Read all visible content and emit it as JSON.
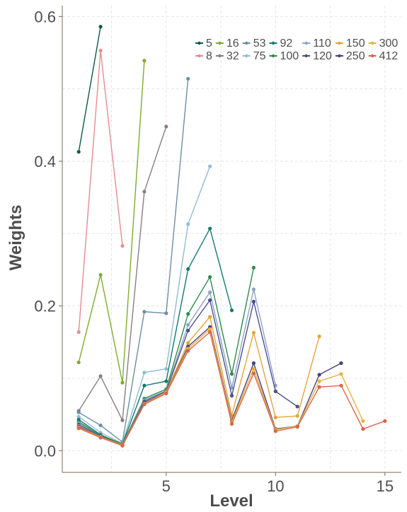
{
  "chart_data": {
    "type": "line",
    "title": "",
    "xlabel": "Level",
    "ylabel": "Weights",
    "xlim": [
      0.25,
      15.75
    ],
    "ylim": [
      -0.03,
      0.615
    ],
    "xticks": [
      5,
      10,
      15
    ],
    "yticks": [
      0.0,
      0.2,
      0.4,
      0.6
    ],
    "ytick_labels": [
      "0.0",
      "0.2",
      "0.4",
      "0.6"
    ],
    "grid": true,
    "legend_position": "top-right",
    "series": [
      {
        "name": "5",
        "color": "#0b5b48",
        "x": [
          1,
          2
        ],
        "y": [
          0.413,
          0.586
        ]
      },
      {
        "name": "8",
        "color": "#e88a93",
        "x": [
          1,
          2,
          3
        ],
        "y": [
          0.164,
          0.553,
          0.283
        ]
      },
      {
        "name": "16",
        "color": "#7cae2e",
        "x": [
          1,
          2,
          3,
          4
        ],
        "y": [
          0.122,
          0.243,
          0.094,
          0.539
        ]
      },
      {
        "name": "32",
        "color": "#8c7d81",
        "x": [
          1,
          2,
          3,
          4,
          5
        ],
        "y": [
          0.055,
          0.103,
          0.042,
          0.358,
          0.448
        ]
      },
      {
        "name": "53",
        "color": "#6b8fa3",
        "x": [
          1,
          2,
          3,
          4,
          5,
          6
        ],
        "y": [
          0.053,
          0.035,
          0.012,
          0.192,
          0.19,
          0.514
        ]
      },
      {
        "name": "75",
        "color": "#8fbcd4",
        "x": [
          1,
          2,
          3,
          4,
          5,
          6,
          7
        ],
        "y": [
          0.047,
          0.025,
          0.01,
          0.108,
          0.113,
          0.313,
          0.393
        ]
      },
      {
        "name": "92",
        "color": "#137a72",
        "x": [
          1,
          2,
          3,
          4,
          5,
          6,
          7,
          8
        ],
        "y": [
          0.043,
          0.022,
          0.009,
          0.09,
          0.096,
          0.251,
          0.307,
          0.194
        ]
      },
      {
        "name": "100",
        "color": "#2f8a4e",
        "x": [
          1,
          2,
          3,
          4,
          5,
          6,
          7,
          8,
          9
        ],
        "y": [
          0.04,
          0.021,
          0.009,
          0.072,
          0.085,
          0.189,
          0.24,
          0.106,
          0.253
        ]
      },
      {
        "name": "110",
        "color": "#8fa3c4",
        "x": [
          1,
          2,
          3,
          4,
          5,
          6,
          7,
          8,
          9,
          10
        ],
        "y": [
          0.038,
          0.02,
          0.008,
          0.07,
          0.083,
          0.174,
          0.219,
          0.087,
          0.223,
          0.09
        ]
      },
      {
        "name": "120",
        "color": "#4a4f8c",
        "x": [
          1,
          2,
          3,
          4,
          5,
          6,
          7,
          8,
          9,
          10,
          11
        ],
        "y": [
          0.036,
          0.02,
          0.008,
          0.068,
          0.082,
          0.166,
          0.208,
          0.076,
          0.206,
          0.082,
          0.061
        ]
      },
      {
        "name": "150",
        "color": "#e6a33a",
        "x": [
          1,
          2,
          3,
          4,
          5,
          6,
          7,
          8,
          9,
          10,
          11,
          12
        ],
        "y": [
          0.034,
          0.019,
          0.008,
          0.066,
          0.081,
          0.149,
          0.185,
          0.049,
          0.163,
          0.046,
          0.048,
          0.158
        ]
      },
      {
        "name": "250",
        "color": "#47417e",
        "x": [
          1,
          2,
          3,
          4,
          5,
          6,
          7,
          8,
          9,
          10,
          11,
          12,
          13
        ],
        "y": [
          0.033,
          0.019,
          0.007,
          0.066,
          0.08,
          0.144,
          0.171,
          0.042,
          0.121,
          0.03,
          0.034,
          0.105,
          0.121
        ]
      },
      {
        "name": "300",
        "color": "#e8b23f",
        "x": [
          1,
          2,
          3,
          4,
          5,
          6,
          7,
          8,
          9,
          10,
          11,
          12,
          13,
          14
        ],
        "y": [
          0.032,
          0.019,
          0.007,
          0.065,
          0.08,
          0.141,
          0.168,
          0.04,
          0.113,
          0.029,
          0.034,
          0.096,
          0.106,
          0.041
        ]
      },
      {
        "name": "412",
        "color": "#d9654a",
        "x": [
          1,
          2,
          3,
          4,
          5,
          6,
          7,
          8,
          9,
          10,
          11,
          12,
          13,
          14,
          15
        ],
        "y": [
          0.031,
          0.018,
          0.007,
          0.064,
          0.079,
          0.138,
          0.164,
          0.037,
          0.107,
          0.027,
          0.033,
          0.088,
          0.09,
          0.03,
          0.041
        ]
      }
    ],
    "legend_rows": [
      [
        "5",
        "16",
        "53",
        "92",
        "110",
        "150",
        "300"
      ],
      [
        "8",
        "32",
        "75",
        "100",
        "120",
        "250",
        "412"
      ]
    ]
  }
}
